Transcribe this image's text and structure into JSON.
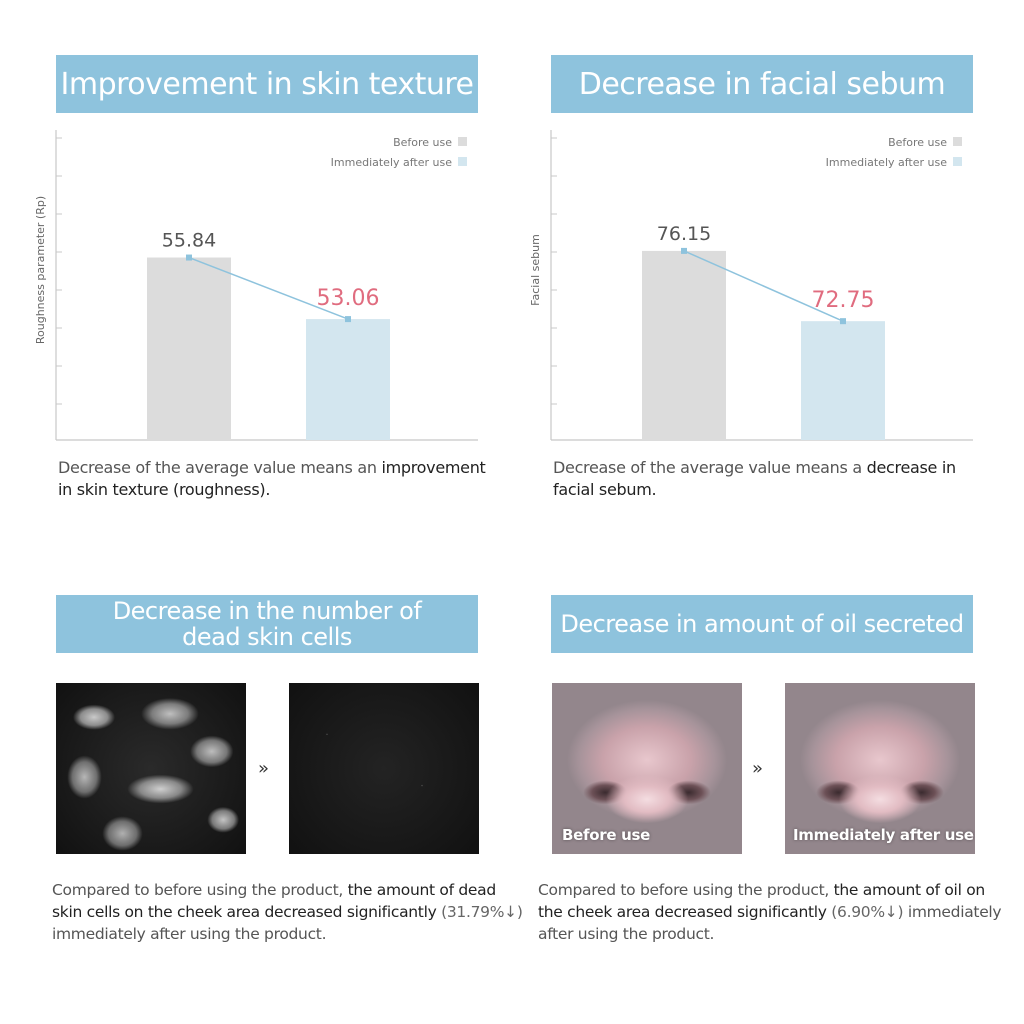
{
  "panels": {
    "texture": {
      "title": "Improvement in skin texture",
      "desc_plain": "Decrease of the average value means an ",
      "desc_bold": "improvement in skin texture (roughness)."
    },
    "sebum": {
      "title": "Decrease in facial sebum",
      "desc_plain": "Decrease of the average value means a ",
      "desc_bold": "decrease in facial sebum."
    },
    "dead_cells": {
      "title_line1": "Decrease in the number of",
      "title_line2": "dead skin cells",
      "arrow": "»",
      "desc_plain1": "Compared to before using the product, ",
      "desc_bold": "the amount of dead skin cells on the cheek area decreased significantly",
      "desc_pct": " (31.79%↓)",
      "desc_plain2": " immediately after using the product."
    },
    "oil": {
      "title": "Decrease in amount of oil secreted",
      "arrow": "»",
      "before_caption": "Before use",
      "after_caption": "Immediately after use",
      "desc_plain1": "Compared to before using the product, ",
      "desc_bold": "the amount of oil on the cheek area decreased significantly",
      "desc_pct": " (6.90%↓)",
      "desc_plain2": " immediately after using the product."
    }
  },
  "colors": {
    "banner": "#8ec3dd",
    "before_bar": "#dcdcdc",
    "after_bar": "#d3e6ef",
    "line": "#8ec3dd",
    "after_label": "#e06c7f",
    "before_label": "#555555",
    "axis": "#c8c8c8"
  },
  "chart_data": [
    {
      "type": "bar",
      "title": "Improvement in skin texture",
      "ylabel": "Roughness parameter (Rp)",
      "categories": [
        "Before use",
        "Immediately after use"
      ],
      "values": [
        55.84,
        53.06
      ],
      "value_labels": [
        "55.84",
        "53.06"
      ],
      "ylim": [
        47.6,
        61.6
      ],
      "legend": [
        "Before use",
        "Immediately after use"
      ],
      "legend_position": "top-right",
      "connecting_line": true,
      "grid": false
    },
    {
      "type": "bar",
      "title": "Decrease in facial sebum",
      "ylabel": "Facial sebum",
      "categories": [
        "Before use",
        "Immediately after use"
      ],
      "values": [
        76.15,
        72.75
      ],
      "value_labels": [
        "76.15",
        "72.75"
      ],
      "ylim": [
        67.0,
        82.0
      ],
      "legend": [
        "Before use",
        "Immediately after use"
      ],
      "legend_position": "top-right",
      "connecting_line": true,
      "grid": false
    }
  ]
}
